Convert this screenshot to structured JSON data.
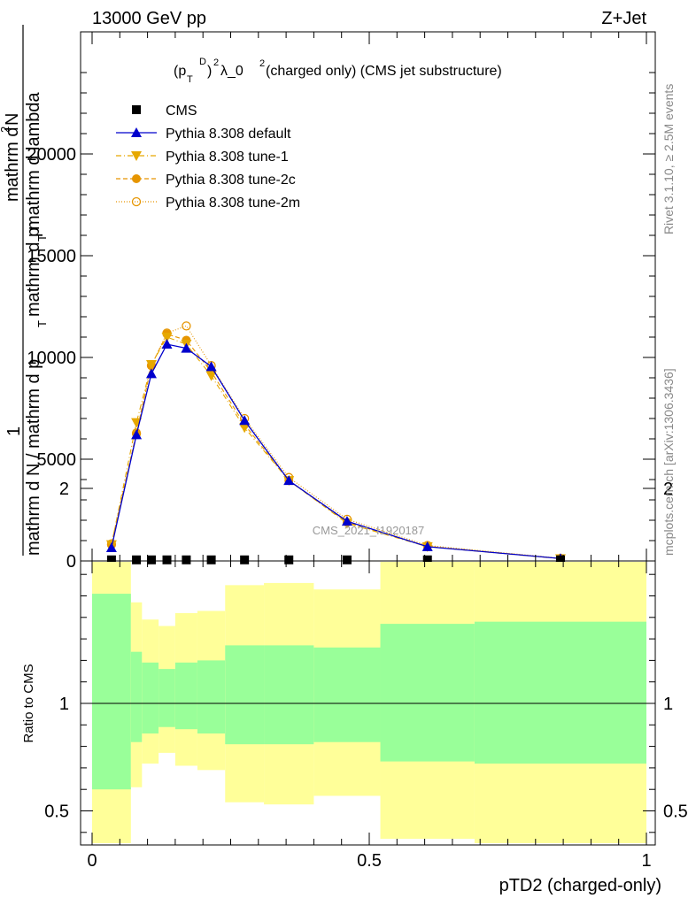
{
  "header": {
    "energy": "13000 GeV pp",
    "process": "Z+Jet",
    "plot_title_base": "(p",
    "plot_title_sub": "T",
    "plot_title_sup": "D",
    "plot_title_rest": ")",
    "plot_title_exp": "2",
    "plot_title_lambda": " λ_0",
    "plot_title_lambda_exp": "2",
    "plot_title_tail": " (charged only) (CMS jet substructure)"
  },
  "side_labels": {
    "rivet": "Rivet 3.1.10, ≥ 2.5M events",
    "mcplots": "mcplots.cern.ch [arXiv:1306.3436]"
  },
  "watermark": "CMS_2021_I1920187",
  "ylabel_top": {
    "one": "1",
    "numerator": "mathrm d",
    "numerator_sup": "2",
    "numerator_tail": "N",
    "denominator_a": "mathrm d N / mathrm d p",
    "denominator_b": "mathrm d p",
    "denominator_c": "mathrm d lambda",
    "sub_t": "T"
  },
  "ratio_ylabel": "Ratio to CMS",
  "xlabel": "pTD2 (charged-only)",
  "legend": [
    {
      "label": "CMS",
      "color": "#000000",
      "marker": "square",
      "dash": ""
    },
    {
      "label": "Pythia 8.308 default",
      "color": "#0000cc",
      "marker": "triangle-up",
      "dash": ""
    },
    {
      "label": "Pythia 8.308 tune-1",
      "color": "#e6a800",
      "marker": "triangle-down",
      "dash": "6,3,1,3"
    },
    {
      "label": "Pythia 8.308 tune-2c",
      "color": "#e69500",
      "marker": "circle-filled",
      "dash": "5,3"
    },
    {
      "label": "Pythia 8.308 tune-2m",
      "color": "#e69500",
      "marker": "circle-open",
      "dash": "1,2"
    }
  ],
  "chart_data": [
    {
      "type": "line",
      "title": "",
      "xlabel": "pTD2 (charged-only)",
      "xlim": [
        -0.02,
        1.0
      ],
      "ylim": [
        0,
        25000
      ],
      "yticks": [
        0,
        5000,
        10000,
        15000,
        20000
      ],
      "xticks": [
        0,
        0.5,
        1
      ],
      "xtick_labels": [
        "0",
        "0.5",
        "1"
      ],
      "ytick_labels": [
        "0",
        "5000",
        "10000",
        "15000",
        "20000"
      ],
      "cms": {
        "name": "CMS",
        "x": [
          0.035,
          0.08,
          0.107,
          0.135,
          0.17,
          0.215,
          0.275,
          0.355,
          0.46,
          0.605,
          0.845
        ],
        "y": [
          10,
          10,
          10,
          10,
          10,
          10,
          10,
          10,
          10,
          10,
          10
        ]
      },
      "series": [
        {
          "name": "Pythia 8.308 default",
          "x": [
            0.035,
            0.08,
            0.107,
            0.135,
            0.17,
            0.215,
            0.275,
            0.355,
            0.46,
            0.605,
            0.845
          ],
          "y": [
            650,
            6200,
            9200,
            10650,
            10450,
            9550,
            6900,
            3950,
            1950,
            700,
            120
          ]
        },
        {
          "name": "Pythia 8.308 tune-1",
          "x": [
            0.035,
            0.08,
            0.107,
            0.135,
            0.17,
            0.215,
            0.275,
            0.355,
            0.46,
            0.605,
            0.845
          ],
          "y": [
            800,
            6800,
            9650,
            11000,
            10650,
            9100,
            6550,
            3950,
            1850,
            700,
            110
          ]
        },
        {
          "name": "Pythia 8.308 tune-2c",
          "x": [
            0.035,
            0.08,
            0.107,
            0.135,
            0.17,
            0.215,
            0.275,
            0.355,
            0.46,
            0.605,
            0.845
          ],
          "y": [
            850,
            6300,
            9600,
            11150,
            10850,
            9300,
            6700,
            3950,
            1900,
            720,
            120
          ]
        },
        {
          "name": "Pythia 8.308 tune-2m",
          "x": [
            0.035,
            0.08,
            0.107,
            0.135,
            0.17,
            0.215,
            0.275,
            0.355,
            0.46,
            0.605,
            0.845
          ],
          "y": [
            800,
            6250,
            9600,
            11200,
            11550,
            9600,
            7000,
            4100,
            2050,
            760,
            130
          ]
        }
      ]
    },
    {
      "type": "area",
      "title": "",
      "ylabel": "Ratio to CMS",
      "xlabel": "pTD2 (charged-only)",
      "xlim": [
        -0.02,
        1.0
      ],
      "ylim": [
        0.35,
        2.3
      ],
      "yticks": [
        0.5,
        1,
        2
      ],
      "ytick_labels": [
        "0.5",
        "1",
        "2"
      ],
      "reference": 1,
      "bins": [
        {
          "x0": 0.0,
          "x1": 0.07,
          "green_lo": 0.6,
          "green_hi": 1.51,
          "yellow_lo": 0.35,
          "yellow_hi": 1.88
        },
        {
          "x0": 0.07,
          "x1": 0.09,
          "green_lo": 0.82,
          "green_hi": 1.24,
          "yellow_lo": 0.61,
          "yellow_hi": 1.47
        },
        {
          "x0": 0.09,
          "x1": 0.12,
          "green_lo": 0.86,
          "green_hi": 1.19,
          "yellow_lo": 0.72,
          "yellow_hi": 1.39
        },
        {
          "x0": 0.12,
          "x1": 0.15,
          "green_lo": 0.89,
          "green_hi": 1.16,
          "yellow_lo": 0.77,
          "yellow_hi": 1.36
        },
        {
          "x0": 0.15,
          "x1": 0.19,
          "green_lo": 0.88,
          "green_hi": 1.19,
          "yellow_lo": 0.71,
          "yellow_hi": 1.42
        },
        {
          "x0": 0.19,
          "x1": 0.24,
          "green_lo": 0.86,
          "green_hi": 1.2,
          "yellow_lo": 0.69,
          "yellow_hi": 1.43
        },
        {
          "x0": 0.24,
          "x1": 0.31,
          "green_lo": 0.81,
          "green_hi": 1.27,
          "yellow_lo": 0.54,
          "yellow_hi": 1.55
        },
        {
          "x0": 0.31,
          "x1": 0.4,
          "green_lo": 0.81,
          "green_hi": 1.27,
          "yellow_lo": 0.53,
          "yellow_hi": 1.56
        },
        {
          "x0": 0.4,
          "x1": 0.52,
          "green_lo": 0.82,
          "green_hi": 1.26,
          "yellow_lo": 0.57,
          "yellow_hi": 1.53
        },
        {
          "x0": 0.52,
          "x1": 0.69,
          "green_lo": 0.73,
          "green_hi": 1.37,
          "yellow_lo": 0.37,
          "yellow_hi": 1.66
        },
        {
          "x0": 0.69,
          "x1": 1.0,
          "green_lo": 0.72,
          "green_hi": 1.38,
          "yellow_lo": 0.35,
          "yellow_hi": 1.73
        }
      ],
      "colors": {
        "green": "#99ff99",
        "yellow": "#ffff99"
      }
    }
  ]
}
